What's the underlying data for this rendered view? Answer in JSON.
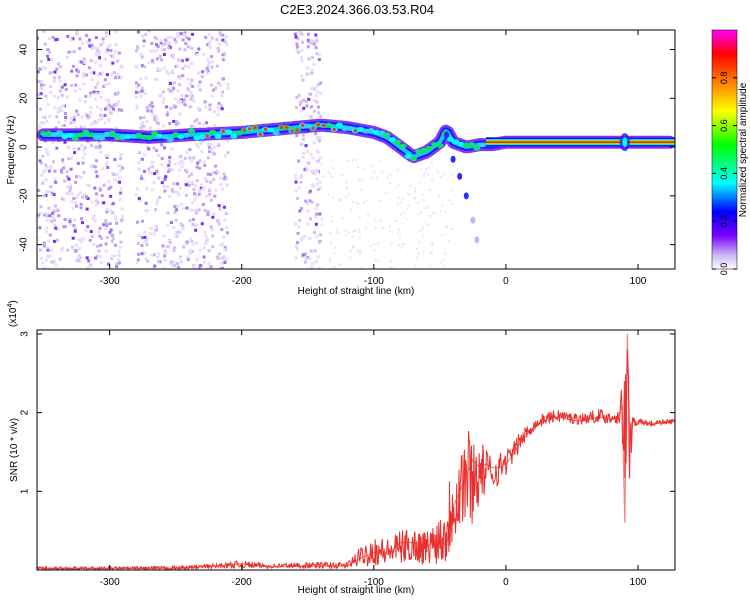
{
  "title": "C2E3.2024.366.03.53.R04",
  "chart_data": [
    {
      "type": "heatmap",
      "xlabel": "Height of straight line (km)",
      "ylabel": "Frequency (Hz)",
      "xlim": [
        -355,
        128
      ],
      "ylim": [
        -50,
        48
      ],
      "xticks": [
        -300,
        -200,
        -100,
        0,
        100
      ],
      "yticks": [
        -40,
        -20,
        0,
        20,
        40
      ],
      "colorbar": {
        "label": "Normalized spectral amplitude",
        "range": [
          0,
          1
        ],
        "ticks": [
          0.0,
          0.2,
          0.4,
          0.6,
          0.8
        ],
        "tick_labels": [
          "0.0",
          "0.2",
          "0.4",
          "0.6",
          "0.8"
        ],
        "colormap": [
          "#ffffff",
          "#b89cf0",
          "#7a00ff",
          "#0000ff",
          "#00ffff",
          "#00ff00",
          "#ffff00",
          "#ff8000",
          "#ff0000",
          "#ff00ff"
        ]
      },
      "ridge": {
        "x": [
          -350,
          -320,
          -300,
          -270,
          -240,
          -200,
          -180,
          -160,
          -140,
          -120,
          -100,
          -90,
          -80,
          -70,
          -60,
          -50,
          -45,
          -40,
          -30,
          -20,
          -10,
          0,
          20,
          50,
          90,
          100,
          125
        ],
        "y": [
          5,
          5,
          5,
          4,
          5,
          6,
          7,
          8,
          9,
          8,
          6,
          4,
          0,
          -4,
          -2,
          2,
          7,
          2,
          0,
          1,
          1,
          2,
          2,
          2,
          2,
          2,
          2
        ],
        "stable_from_x": -15
      },
      "noise_bands_x": [
        [
          -355,
          -290
        ],
        [
          -280,
          -210
        ],
        [
          -160,
          -140
        ]
      ]
    },
    {
      "type": "line",
      "xlabel": "Height of straight line (km)",
      "ylabel": "SNR (10 * v/v)",
      "y_multiplier": "(x10^4)",
      "y_multiplier_base": "(x10",
      "y_multiplier_exp": "4",
      "y_multiplier_close": ")",
      "xlim": [
        -355,
        128
      ],
      "ylim": [
        0,
        3.05
      ],
      "xticks": [
        -300,
        -200,
        -100,
        0,
        100
      ],
      "yticks": [
        1,
        2,
        3
      ],
      "color": "#e8302f",
      "series": [
        {
          "x": [
            -355,
            -300,
            -250,
            -220,
            -200,
            -190,
            -180,
            -150,
            -120,
            -110,
            -100,
            -90,
            -80,
            -70,
            -60,
            -50,
            -45,
            -40,
            -35,
            -30,
            -25,
            -20,
            -15,
            -10,
            -5,
            0,
            5,
            10,
            20,
            30,
            40,
            50,
            60,
            70,
            80,
            85,
            88,
            90,
            92,
            94,
            96,
            100,
            110,
            120,
            128
          ],
          "y": [
            0.02,
            0.02,
            0.02,
            0.05,
            0.08,
            0.06,
            0.04,
            0.05,
            0.05,
            0.15,
            0.22,
            0.2,
            0.35,
            0.35,
            0.3,
            0.4,
            0.3,
            0.8,
            1.0,
            1.2,
            1.4,
            1.3,
            1.35,
            1.3,
            1.3,
            1.35,
            1.45,
            1.6,
            1.8,
            1.9,
            1.95,
            1.9,
            1.9,
            1.95,
            1.92,
            1.95,
            2.1,
            0.6,
            3.0,
            1.6,
            1.9,
            1.88,
            1.85,
            1.88,
            1.88
          ],
          "envelope_low": [
            0.0,
            0.0,
            0.0,
            0.02,
            0.02,
            0.02,
            0.02,
            0.02,
            0.02,
            0.05,
            0.05,
            0.05,
            0.08,
            0.08,
            0.06,
            0.08,
            0.05,
            0.3,
            0.4,
            0.5,
            0.6,
            0.8,
            1.0,
            1.0,
            1.1,
            1.2,
            1.35,
            1.5,
            1.75,
            1.85,
            1.88,
            1.85,
            1.85,
            1.88,
            1.85,
            1.85,
            1.7,
            0.55,
            1.0,
            1.1,
            1.8,
            1.84,
            1.82,
            1.85,
            1.85
          ],
          "envelope_high": [
            0.04,
            0.04,
            0.05,
            0.08,
            0.12,
            0.1,
            0.08,
            0.1,
            0.1,
            0.3,
            0.45,
            0.4,
            0.5,
            0.55,
            0.5,
            0.75,
            0.9,
            1.6,
            1.7,
            1.9,
            1.75,
            1.65,
            1.55,
            1.45,
            1.5,
            1.55,
            1.6,
            1.75,
            1.9,
            2.0,
            2.05,
            2.0,
            2.0,
            2.05,
            2.0,
            2.1,
            2.4,
            2.6,
            3.05,
            2.2,
            1.98,
            1.92,
            1.9,
            1.92,
            1.92
          ]
        }
      ]
    }
  ]
}
